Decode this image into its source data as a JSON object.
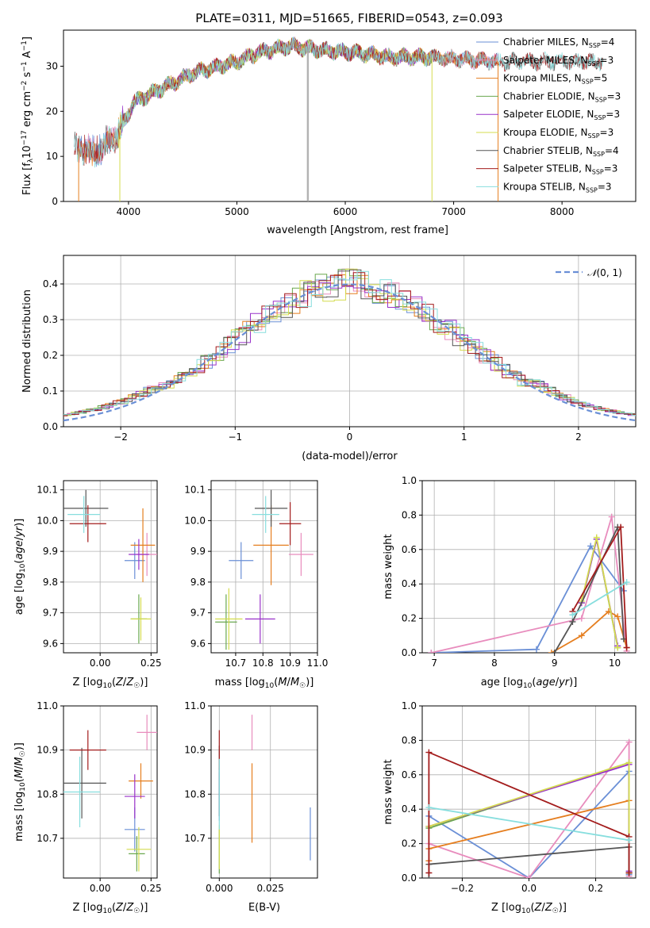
{
  "figure_title": "PLATE=0311, MJD=51665, FIBERID=0543, z=0.093",
  "colors": {
    "Chabrier MILES": "#6a8fd6",
    "Salpeter MILES": "#e88cbd",
    "Kroupa MILES": "#e57e1f",
    "Chabrier ELODIE": "#6aa84f",
    "Salpeter ELODIE": "#9932c9",
    "Kroupa ELODIE": "#d4dc4f",
    "Chabrier STELIB": "#555555",
    "Salpeter STELIB": "#a31c1c",
    "Kroupa STELIB": "#87dede",
    "normal": "#6a8fd6"
  },
  "chart_data": [
    {
      "id": "spectrum",
      "type": "line",
      "title": "PLATE=0311, MJD=51665, FIBERID=0543, z=0.093",
      "xlabel": "wavelength [Angstrom, rest frame]",
      "ylabel": "Flux [f_λ 10^-17 erg cm^-2 s^-1 A^-1]",
      "xlim": [
        3400,
        8680
      ],
      "ylim": [
        0,
        38
      ],
      "xticks": [
        4000,
        5000,
        6000,
        7000,
        8000
      ],
      "yticks": [
        0,
        10,
        20,
        30
      ],
      "grid": false,
      "legend_position": "upper right",
      "continuum_points": [
        [
          3500,
          12
        ],
        [
          3700,
          11
        ],
        [
          3900,
          15
        ],
        [
          4050,
          22
        ],
        [
          4300,
          25
        ],
        [
          4600,
          28.5
        ],
        [
          5000,
          31
        ],
        [
          5200,
          33
        ],
        [
          5500,
          34.5
        ],
        [
          5800,
          33.5
        ],
        [
          6100,
          33
        ],
        [
          6400,
          32
        ],
        [
          6800,
          32
        ],
        [
          7100,
          31.5
        ],
        [
          7400,
          31
        ]
      ],
      "series_extent": [
        {
          "name": "Chabrier MILES, N_SSP=4",
          "x_range": [
            3540,
            7410
          ]
        },
        {
          "name": "Salpeter MILES, N_SSP=3",
          "x_range": [
            3540,
            7410
          ]
        },
        {
          "name": "Kroupa MILES, N_SSP=5",
          "x_range": [
            3540,
            7410
          ]
        },
        {
          "name": "Chabrier ELODIE, N_SSP=3",
          "x_range": [
            3900,
            6800
          ]
        },
        {
          "name": "Salpeter ELODIE, N_SSP=3",
          "x_range": [
            3900,
            6800
          ]
        },
        {
          "name": "Kroupa ELODIE, N_SSP=3",
          "x_range": [
            3900,
            6800
          ]
        },
        {
          "name": "Chabrier STELIB, N_SSP=4",
          "x_range": [
            3500,
            8380
          ]
        },
        {
          "name": "Salpeter STELIB, N_SSP=3",
          "x_range": [
            3500,
            8380
          ]
        },
        {
          "name": "Kroupa STELIB, N_SSP=3",
          "x_range": [
            3500,
            8380
          ]
        }
      ],
      "legend": [
        {
          "model": "Chabrier MILES",
          "label": "Chabrier MILES, N",
          "sub": "SSP",
          "n": "=4"
        },
        {
          "model": "Salpeter MILES",
          "label": "Salpeter MILES, N",
          "sub": "SSP",
          "n": "=3"
        },
        {
          "model": "Kroupa MILES",
          "label": "Kroupa MILES, N",
          "sub": "SSP",
          "n": "=5"
        },
        {
          "model": "Chabrier ELODIE",
          "label": "Chabrier ELODIE, N",
          "sub": "SSP",
          "n": "=3"
        },
        {
          "model": "Salpeter ELODIE",
          "label": "Salpeter ELODIE, N",
          "sub": "SSP",
          "n": "=3"
        },
        {
          "model": "Kroupa ELODIE",
          "label": "Kroupa ELODIE, N",
          "sub": "SSP",
          "n": "=3"
        },
        {
          "model": "Chabrier STELIB",
          "label": "Chabrier STELIB, N",
          "sub": "SSP",
          "n": "=4"
        },
        {
          "model": "Salpeter STELIB",
          "label": "Salpeter STELIB, N",
          "sub": "SSP",
          "n": "=3"
        },
        {
          "model": "Kroupa STELIB",
          "label": "Kroupa STELIB, N",
          "sub": "SSP",
          "n": "=3"
        }
      ]
    },
    {
      "id": "residuals",
      "type": "histogram",
      "xlabel": "(data-model)/error",
      "ylabel": "Normed distribution",
      "xlim": [
        -2.5,
        2.5
      ],
      "ylim": [
        0,
        0.48
      ],
      "xticks": [
        -2,
        -1,
        0,
        1,
        2
      ],
      "yticks": [
        0.0,
        0.1,
        0.2,
        0.3,
        0.4
      ],
      "grid": true,
      "legend_position": "upper right",
      "legend_label": "N(0,1)",
      "bin_width": 0.1,
      "normal_curve": {
        "mean": 0,
        "sigma": 1
      }
    },
    {
      "id": "age_vs_Z",
      "type": "scatter",
      "xlabel": "Z [log10(Z/Z☉)]",
      "ylabel": "age  [log10(age/yr)]",
      "xlim": [
        -0.18,
        0.28
      ],
      "ylim": [
        9.57,
        10.13
      ],
      "xticks": [
        0.0,
        0.25
      ],
      "xtick_labels": [
        "0.00",
        "0.25"
      ],
      "yticks": [
        9.6,
        9.7,
        9.8,
        9.9,
        10.0,
        10.1
      ],
      "grid": true,
      "points": [
        {
          "model": "Chabrier MILES",
          "x": 0.17,
          "y": 9.87,
          "xerr": 0.05,
          "yerr": 0.06
        },
        {
          "model": "Salpeter MILES",
          "x": 0.23,
          "y": 9.89,
          "xerr": 0.05,
          "yerr": 0.07
        },
        {
          "model": "Kroupa MILES",
          "x": 0.21,
          "y": 9.92,
          "xerr": 0.06,
          "yerr": 0.12
        },
        {
          "model": "Chabrier ELODIE",
          "x": 0.19,
          "y": 9.68,
          "xerr": 0.04,
          "yerr": 0.08
        },
        {
          "model": "Salpeter ELODIE",
          "x": 0.19,
          "y": 9.89,
          "xerr": 0.05,
          "yerr": 0.05
        },
        {
          "model": "Kroupa ELODIE",
          "x": 0.2,
          "y": 9.68,
          "xerr": 0.05,
          "yerr": 0.07
        },
        {
          "model": "Chabrier STELIB",
          "x": -0.07,
          "y": 10.04,
          "xerr": 0.11,
          "yerr": 0.06
        },
        {
          "model": "Salpeter STELIB",
          "x": -0.06,
          "y": 9.99,
          "xerr": 0.09,
          "yerr": 0.06
        },
        {
          "model": "Kroupa STELIB",
          "x": -0.08,
          "y": 10.02,
          "xerr": 0.08,
          "yerr": 0.06
        }
      ]
    },
    {
      "id": "age_vs_mass",
      "type": "scatter",
      "xlabel": "mass [log10(M/M☉)]",
      "xlim": [
        10.61,
        11.0
      ],
      "ylim": [
        9.57,
        10.13
      ],
      "xticks": [
        10.7,
        10.8,
        10.9,
        11.0
      ],
      "xtick_labels": [
        "10.7",
        "10.8",
        "10.9",
        "11.0"
      ],
      "yticks": [
        9.6,
        9.7,
        9.8,
        9.9,
        10.0,
        10.1
      ],
      "grid": true,
      "points": [
        {
          "model": "Chabrier MILES",
          "x": 10.72,
          "y": 9.87,
          "xerr": 0.045,
          "yerr": 0.06
        },
        {
          "model": "Salpeter MILES",
          "x": 10.94,
          "y": 9.89,
          "xerr": 0.045,
          "yerr": 0.07
        },
        {
          "model": "Kroupa MILES",
          "x": 10.83,
          "y": 9.92,
          "xerr": 0.065,
          "yerr": 0.13
        },
        {
          "model": "Chabrier ELODIE",
          "x": 10.665,
          "y": 9.67,
          "xerr": 0.04,
          "yerr": 0.09
        },
        {
          "model": "Salpeter ELODIE",
          "x": 10.79,
          "y": 9.68,
          "xerr": 0.055,
          "yerr": 0.08
        },
        {
          "model": "Kroupa ELODIE",
          "x": 10.675,
          "y": 9.68,
          "xerr": 0.05,
          "yerr": 0.1
        },
        {
          "model": "Chabrier STELIB",
          "x": 10.83,
          "y": 10.04,
          "xerr": 0.06,
          "yerr": 0.06
        },
        {
          "model": "Salpeter STELIB",
          "x": 10.9,
          "y": 9.99,
          "xerr": 0.04,
          "yerr": 0.07
        },
        {
          "model": "Kroupa STELIB",
          "x": 10.81,
          "y": 10.02,
          "xerr": 0.05,
          "yerr": 0.06
        }
      ]
    },
    {
      "id": "mass_weight_vs_age",
      "type": "line",
      "xlabel": "age  [log10(age/yr)]",
      "ylabel": "mass weight",
      "xlim": [
        6.8,
        10.35
      ],
      "ylim": [
        0,
        1.0
      ],
      "xticks": [
        7,
        8,
        9,
        10
      ],
      "yticks": [
        0.0,
        0.2,
        0.4,
        0.6,
        0.8,
        1.0
      ],
      "grid": true,
      "series": [
        {
          "model": "Chabrier MILES",
          "x": [
            6.95,
            8.7,
            9.6,
            10.15
          ],
          "y": [
            0.0,
            0.02,
            0.62,
            0.36
          ]
        },
        {
          "model": "Salpeter MILES",
          "x": [
            6.95,
            9.45,
            9.95,
            10.2
          ],
          "y": [
            0.0,
            0.2,
            0.79,
            0.01
          ]
        },
        {
          "model": "Kroupa MILES",
          "x": [
            8.95,
            9.45,
            9.9,
            10.05,
            10.2
          ],
          "y": [
            0.0,
            0.1,
            0.24,
            0.21,
            0.03
          ]
        },
        {
          "model": "Chabrier ELODIE",
          "x": [
            9.45,
            9.7,
            10.05
          ],
          "y": [
            0.29,
            0.66,
            0.03
          ]
        },
        {
          "model": "Salpeter ELODIE",
          "x": [
            9.45,
            9.7,
            10.05
          ],
          "y": [
            0.29,
            0.66,
            0.04
          ]
        },
        {
          "model": "Kroupa ELODIE",
          "x": [
            9.45,
            9.7,
            10.05
          ],
          "y": [
            0.3,
            0.67,
            0.03
          ]
        },
        {
          "model": "Chabrier STELIB",
          "x": [
            9.0,
            9.3,
            10.05,
            10.15
          ],
          "y": [
            0.0,
            0.18,
            0.73,
            0.08
          ]
        },
        {
          "model": "Salpeter STELIB",
          "x": [
            9.3,
            10.1,
            10.2
          ],
          "y": [
            0.24,
            0.73,
            0.03
          ]
        },
        {
          "model": "Kroupa STELIB",
          "x": [
            9.3,
            10.2
          ],
          "y": [
            0.22,
            0.41
          ]
        }
      ]
    },
    {
      "id": "mass_vs_Z",
      "type": "scatter",
      "xlabel": "Z [log10(Z/Z☉)]",
      "ylabel": "mass [log10(M/M☉)]",
      "xlim": [
        -0.18,
        0.28
      ],
      "ylim": [
        10.61,
        11.0
      ],
      "xticks": [
        0.0,
        0.25
      ],
      "xtick_labels": [
        "0.00",
        "0.25"
      ],
      "yticks": [
        10.7,
        10.8,
        10.9,
        11.0
      ],
      "grid": true,
      "points": [
        {
          "model": "Chabrier MILES",
          "x": 0.17,
          "y": 10.72,
          "xerr": 0.05,
          "yerr": 0.05
        },
        {
          "model": "Salpeter MILES",
          "x": 0.23,
          "y": 10.94,
          "xerr": 0.05,
          "yerr": 0.04
        },
        {
          "model": "Kroupa MILES",
          "x": 0.2,
          "y": 10.83,
          "xerr": 0.06,
          "yerr": 0.04
        },
        {
          "model": "Chabrier ELODIE",
          "x": 0.18,
          "y": 10.665,
          "xerr": 0.04,
          "yerr": 0.04
        },
        {
          "model": "Salpeter ELODIE",
          "x": 0.17,
          "y": 10.795,
          "xerr": 0.05,
          "yerr": 0.05
        },
        {
          "model": "Kroupa ELODIE",
          "x": 0.19,
          "y": 10.675,
          "xerr": 0.06,
          "yerr": 0.05
        },
        {
          "model": "Chabrier STELIB",
          "x": -0.09,
          "y": 10.825,
          "xerr": 0.12,
          "yerr": 0.08
        },
        {
          "model": "Salpeter STELIB",
          "x": -0.06,
          "y": 10.9,
          "xerr": 0.09,
          "yerr": 0.045
        },
        {
          "model": "Kroupa STELIB",
          "x": -0.1,
          "y": 10.805,
          "xerr": 0.1,
          "yerr": 0.08
        }
      ]
    },
    {
      "id": "mass_vs_ebv",
      "type": "scatter",
      "xlabel": "E(B-V)",
      "xlim": [
        -0.004,
        0.048
      ],
      "ylim": [
        10.61,
        11.0
      ],
      "xticks": [
        0.0,
        0.025
      ],
      "xtick_labels": [
        "0.000",
        "0.025"
      ],
      "yticks": [
        10.7,
        10.8,
        10.9,
        11.0
      ],
      "grid": true,
      "points": [
        {
          "model": "Chabrier MILES",
          "x": 0.0,
          "y": 10.8,
          "yerr": 0.06
        },
        {
          "model": "Salpeter MILES",
          "x": 0.016,
          "y": 10.94,
          "yerr": 0.04
        },
        {
          "model": "Kroupa MILES",
          "x": 0.016,
          "y": 10.78,
          "yerr": 0.09
        },
        {
          "model": "Chabrier ELODIE",
          "x": 0.0,
          "y": 10.67,
          "yerr": 0.05
        },
        {
          "model": "Salpeter ELODIE",
          "x": 0.0,
          "y": 10.8,
          "yerr": 0.05
        },
        {
          "model": "Kroupa ELODIE",
          "x": 0.0,
          "y": 10.68,
          "yerr": 0.05
        },
        {
          "model": "Chabrier STELIB",
          "x": 0.0,
          "y": 10.83,
          "yerr": 0.08
        },
        {
          "model": "Salpeter STELIB",
          "x": 0.0,
          "y": 10.9,
          "yerr": 0.045
        },
        {
          "model": "Kroupa STELIB",
          "x": 0.0,
          "y": 10.8,
          "yerr": 0.08
        },
        {
          "model": "Chabrier MILES",
          "x": 0.0445,
          "y": 10.71,
          "yerr": 0.06
        }
      ]
    },
    {
      "id": "mass_weight_vs_Z",
      "type": "line",
      "xlabel": "Z [log10(Z/Z☉)]",
      "ylabel": "mass weight",
      "xlim": [
        -0.32,
        0.32
      ],
      "ylim": [
        0,
        1.0
      ],
      "xticks": [
        -0.2,
        0.0,
        0.2
      ],
      "xtick_labels": [
        "−0.2",
        "0.0",
        "0.2"
      ],
      "yticks": [
        0.0,
        0.2,
        0.4,
        0.6,
        0.8,
        1.0
      ],
      "grid": true,
      "series": [
        {
          "model": "Chabrier MILES",
          "x": [
            -0.3,
            0.0,
            0.3,
            0.3
          ],
          "y": [
            0.36,
            0.0,
            0.62,
            0.02
          ]
        },
        {
          "model": "Salpeter MILES",
          "x": [
            -0.3,
            0.0,
            0.3,
            0.3
          ],
          "y": [
            0.2,
            0.0,
            0.79,
            0.01
          ]
        },
        {
          "model": "Kroupa MILES",
          "x": [
            -0.3,
            -0.3,
            0.3,
            0.3
          ],
          "y": [
            0.1,
            0.17,
            0.45,
            0.03
          ]
        },
        {
          "model": "Chabrier ELODIE",
          "x": [
            -0.3,
            0.3,
            0.3
          ],
          "y": [
            0.29,
            0.67,
            0.03
          ]
        },
        {
          "model": "Salpeter ELODIE",
          "x": [
            -0.3,
            0.3,
            0.3
          ],
          "y": [
            0.3,
            0.66,
            0.04
          ]
        },
        {
          "model": "Kroupa ELODIE",
          "x": [
            -0.3,
            0.3,
            0.3
          ],
          "y": [
            0.3,
            0.67,
            0.03
          ]
        },
        {
          "model": "Chabrier STELIB",
          "x": [
            -0.3,
            -0.3,
            0.3,
            0.3
          ],
          "y": [
            0.0,
            0.08,
            0.18,
            0.03
          ]
        },
        {
          "model": "Salpeter STELIB",
          "x": [
            -0.3,
            -0.3,
            0.3,
            0.3
          ],
          "y": [
            0.03,
            0.73,
            0.24,
            0.03
          ]
        },
        {
          "model": "Kroupa STELIB",
          "x": [
            -0.3,
            0.3
          ],
          "y": [
            0.41,
            0.22
          ]
        }
      ]
    }
  ]
}
